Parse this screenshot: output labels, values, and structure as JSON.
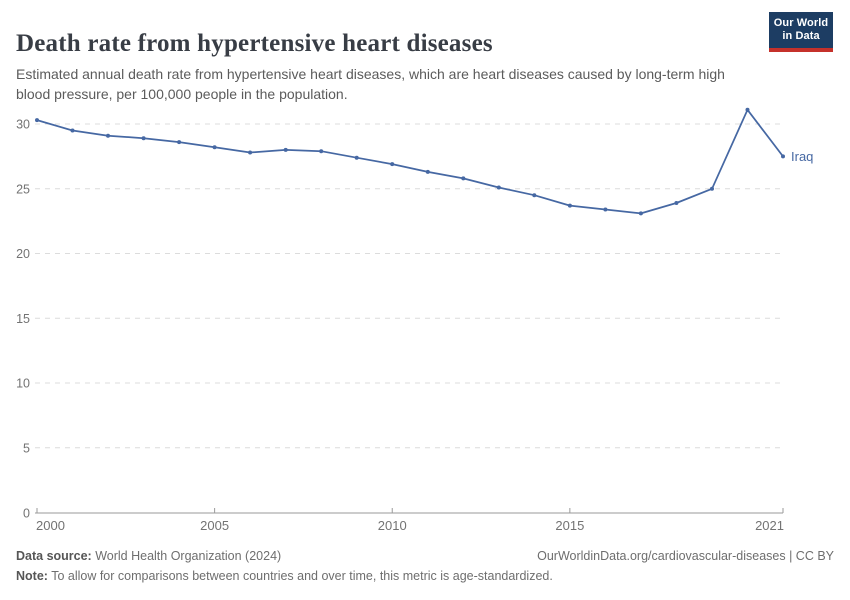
{
  "header": {
    "title": "Death rate from hypertensive heart diseases",
    "subtitle": "Estimated annual death rate from hypertensive heart diseases, which are heart diseases caused by long-term high blood pressure, per 100,000 people in the population.",
    "logo": {
      "line1": "Our World",
      "line2": "in Data"
    }
  },
  "chart_data": {
    "type": "line",
    "title": "Death rate from hypertensive heart diseases",
    "xlabel": "",
    "ylabel": "",
    "xlim": [
      2000,
      2021
    ],
    "ylim": [
      0,
      30
    ],
    "grid": "horizontal-dashed",
    "legend_position": "end-of-line-label",
    "x_ticks": [
      2000,
      2005,
      2010,
      2015,
      2021
    ],
    "y_ticks": [
      0,
      5,
      10,
      15,
      20,
      25,
      30
    ],
    "series": [
      {
        "name": "Iraq",
        "x": [
          2000,
          2001,
          2002,
          2003,
          2004,
          2005,
          2006,
          2007,
          2008,
          2009,
          2010,
          2011,
          2012,
          2013,
          2014,
          2015,
          2016,
          2017,
          2018,
          2019,
          2020,
          2021
        ],
        "values": [
          30.3,
          29.5,
          29.1,
          28.9,
          28.6,
          28.2,
          27.8,
          28.0,
          27.9,
          27.4,
          26.9,
          26.3,
          25.8,
          25.1,
          24.5,
          23.7,
          23.4,
          23.1,
          23.9,
          25.0,
          31.1,
          27.5
        ]
      }
    ]
  },
  "footer": {
    "source_label": "Data source:",
    "source_text": " World Health Organization (2024)",
    "link_text": "OurWorldinData.org/cardiovascular-diseases | CC BY",
    "note_label": "Note:",
    "note_text": " To allow for comparisons between countries and over time, this metric is age-standardized."
  },
  "colors": {
    "accent_line": "#4668a3",
    "title": "#383d45",
    "logo_bg": "#1d3d63",
    "logo_bar": "#c5312b",
    "grid": "#dcdcdc",
    "axis": "#9a9a9a",
    "tick_text": "#737373"
  }
}
